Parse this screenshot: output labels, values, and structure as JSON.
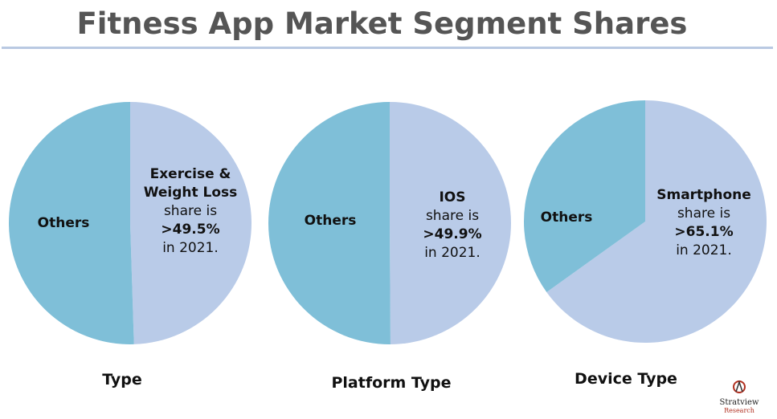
{
  "title": "Fitness App Market Segment Shares",
  "colors": {
    "highlight_slice": "#b9cbe8",
    "others_slice": "#7fbfd8",
    "title_text": "#555555",
    "rule": "#b9c9e2"
  },
  "chart_data": [
    {
      "type": "pie",
      "caption": "Type",
      "slices": [
        {
          "label": "Exercise & Weight Loss",
          "value": 49.5
        },
        {
          "label": "Others",
          "value": 50.5
        }
      ],
      "annotation": {
        "lines": [
          "Exercise &",
          "Weight Loss",
          "share is",
          ">49.5%",
          "in 2021."
        ]
      }
    },
    {
      "type": "pie",
      "caption": "Platform Type",
      "slices": [
        {
          "label": "IOS",
          "value": 49.9
        },
        {
          "label": "Others",
          "value": 50.1
        }
      ],
      "annotation": {
        "lines": [
          "IOS",
          "share is",
          ">49.9%",
          "in 2021."
        ]
      }
    },
    {
      "type": "pie",
      "caption": "Device Type",
      "slices": [
        {
          "label": "Smartphone",
          "value": 65.1
        },
        {
          "label": "Others",
          "value": 34.9
        }
      ],
      "annotation": {
        "lines": [
          "Smartphone",
          "share is",
          ">65.1%",
          "in 2021."
        ]
      }
    }
  ],
  "logo": {
    "name": "Stratview",
    "subname": "Research"
  }
}
